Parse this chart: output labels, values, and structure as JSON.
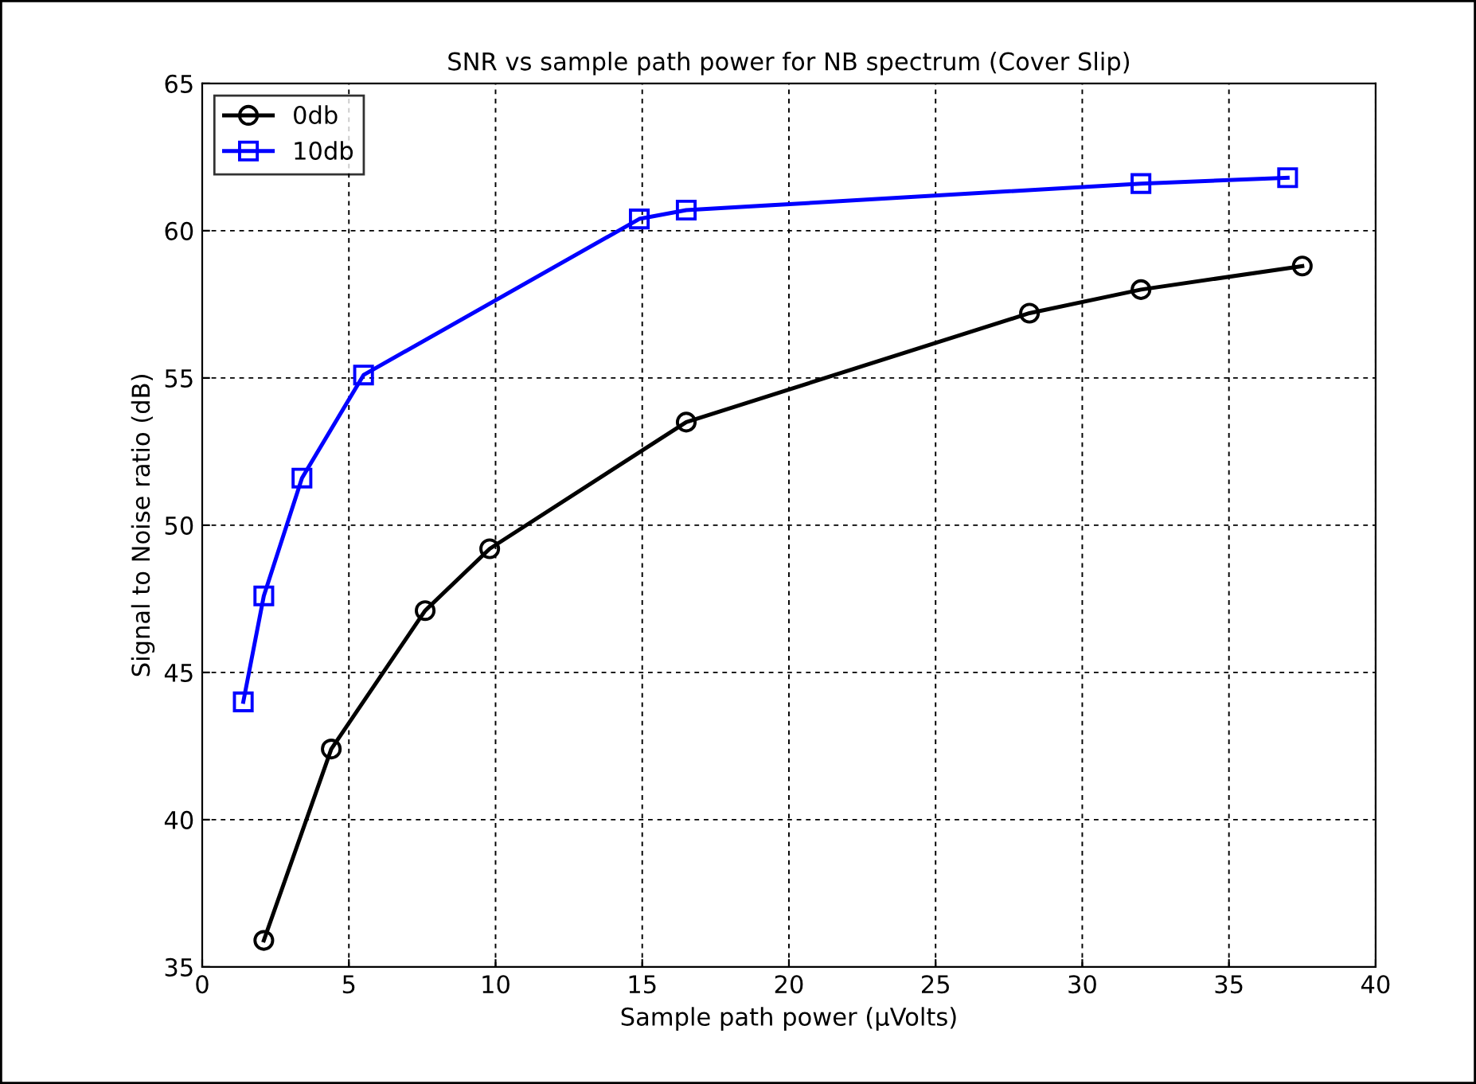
{
  "chart_data": {
    "type": "line",
    "title": "SNR vs sample path power for NB spectrum (Cover Slip)",
    "xlabel": "Sample path power (µVolts)",
    "ylabel": "Signal to Noise ratio (dB)",
    "xlim": [
      0,
      40
    ],
    "xticks": [
      0,
      5,
      10,
      15,
      20,
      25,
      30,
      35,
      40
    ],
    "ylim": [
      35,
      65
    ],
    "yticks": [
      35,
      40,
      45,
      50,
      55,
      60,
      65
    ],
    "grid": true,
    "legend": "top left",
    "line_style": "solid",
    "series": [
      {
        "name": "0db",
        "color": "#000000",
        "marker": "circle",
        "x": [
          2.1,
          4.4,
          7.6,
          9.8,
          16.5,
          28.2,
          32.0,
          37.5
        ],
        "values": [
          35.9,
          42.4,
          47.1,
          49.2,
          53.5,
          57.2,
          58.0,
          58.8
        ]
      },
      {
        "name": "10db",
        "color": "#0000ff",
        "marker": "square",
        "x": [
          1.4,
          2.1,
          3.4,
          5.5,
          14.9,
          16.5,
          32.0,
          37.0
        ],
        "values": [
          44.0,
          47.6,
          51.6,
          55.1,
          60.4,
          60.7,
          61.6,
          61.8
        ]
      }
    ]
  }
}
